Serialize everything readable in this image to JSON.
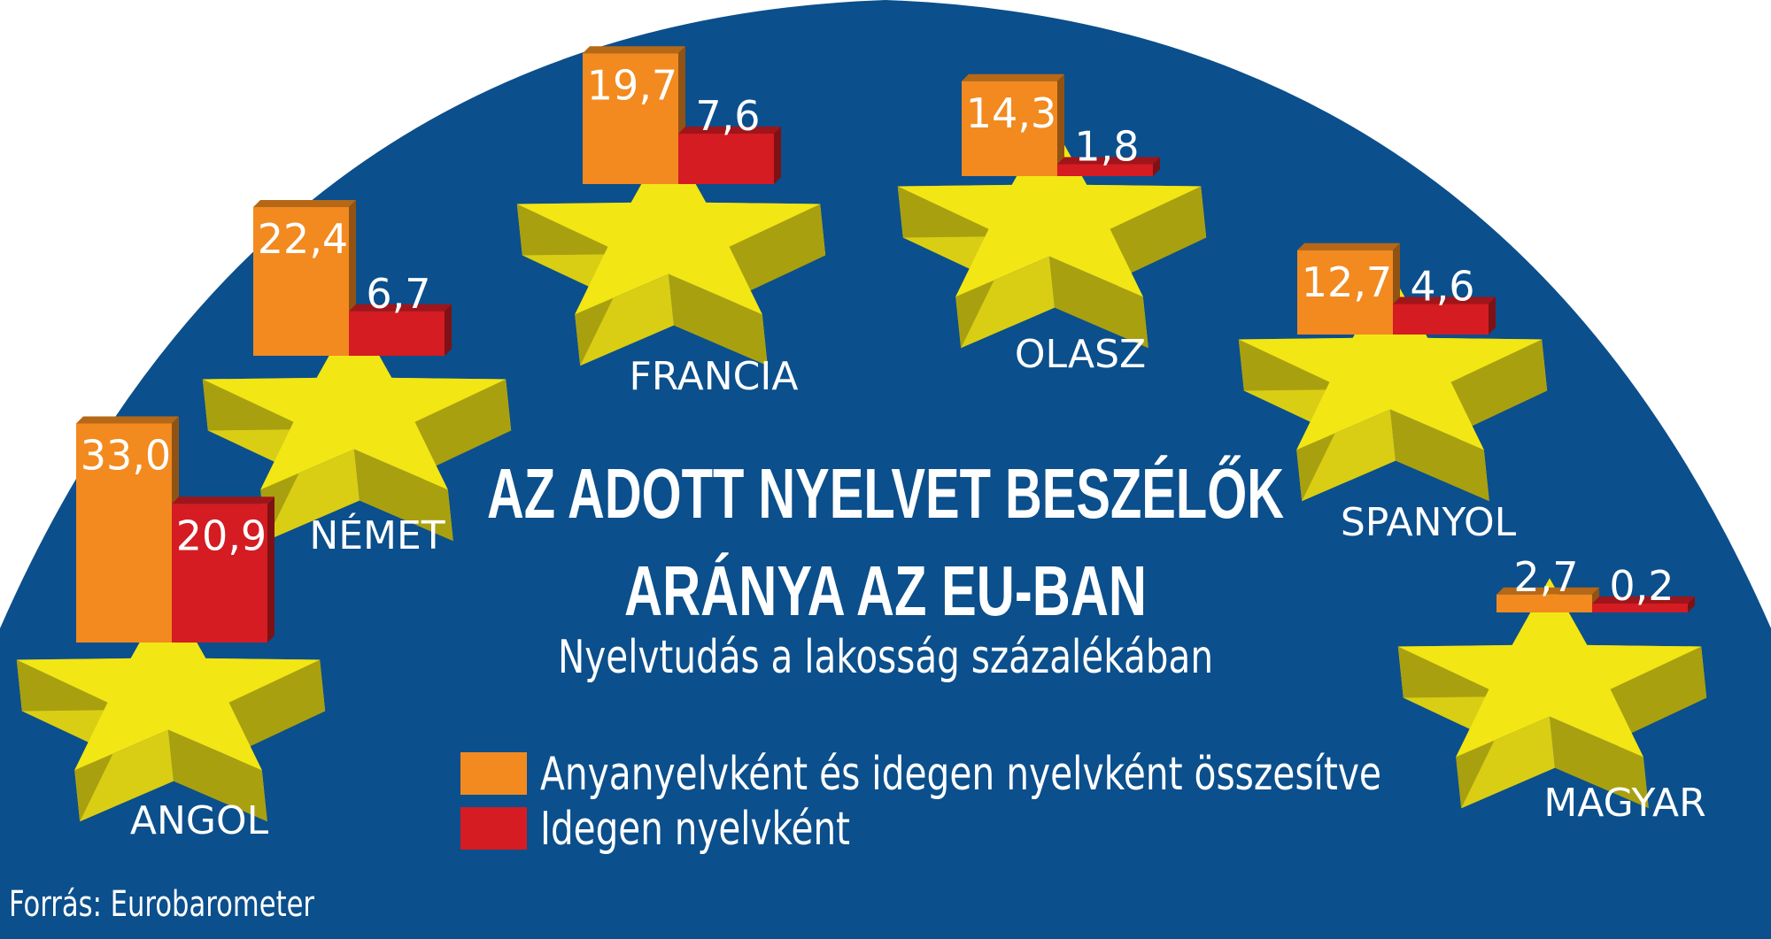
{
  "chart_data": {
    "type": "bar",
    "title": "AZ ADOTT NYELVET BESZÉLŐK",
    "title_line2": "ARÁNYA AZ EU-BAN",
    "subtitle": "Nyelvtudás a lakosság százalékában",
    "categories": [
      "ANGOL",
      "NÉMET",
      "FRANCIA",
      "OLASZ",
      "SPANYOL",
      "MAGYAR"
    ],
    "series": [
      {
        "name": "Anyanyelvként és idegen nyelvként összesítve",
        "color": "#f28a1f",
        "values": [
          33.0,
          22.4,
          19.7,
          14.3,
          12.7,
          2.7
        ],
        "labels": [
          "33,0",
          "22,4",
          "19,7",
          "14,3",
          "12,7",
          "2,7"
        ]
      },
      {
        "name": "Idegen nyelvként",
        "color": "#d41c22",
        "values": [
          20.9,
          6.7,
          7.6,
          1.8,
          4.6,
          0.2
        ],
        "labels": [
          "20,9",
          "6,7",
          "7,6",
          "1,8",
          "4,6",
          "0,2"
        ]
      }
    ],
    "legend_position": "bottom-center",
    "grid": false
  },
  "source": "Forrás: Eurobarometer",
  "colors": {
    "background": "#0b4f8c",
    "star": "#f2e615",
    "star_shade": "#a9a010",
    "star_side": "#d9ce14"
  }
}
